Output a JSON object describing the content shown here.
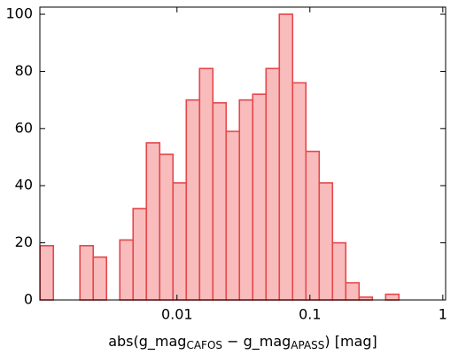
{
  "chart_data": {
    "type": "histogram",
    "xlabel_parts": [
      "abs(g_mag",
      "CAFOS",
      " − g_mag",
      "APASS",
      ") [mag]"
    ],
    "bins": [
      0.000933,
      0.001175,
      0.001479,
      0.001862,
      0.002344,
      0.002951,
      0.003715,
      0.004677,
      0.005888,
      0.007413,
      0.009333,
      0.01175,
      0.01479,
      0.01862,
      0.02344,
      0.02951,
      0.03715,
      0.04677,
      0.05888,
      0.07413,
      0.09333,
      0.1175,
      0.1479,
      0.1862,
      0.2344,
      0.2951,
      0.3715,
      0.4677
    ],
    "counts": [
      19,
      0,
      0,
      19,
      15,
      0,
      21,
      32,
      55,
      51,
      41,
      70,
      81,
      69,
      59,
      70,
      72,
      81,
      100,
      76,
      52,
      41,
      20,
      6,
      1,
      0,
      2
    ],
    "color": "#f9bcbc",
    "edgecolor": "#e5474b",
    "xscale": "log",
    "xlim": [
      0.00093,
      1.05
    ],
    "xticks": [
      0.01,
      0.1,
      1
    ],
    "ylim": [
      0,
      102.5
    ],
    "yticks": [
      0,
      20,
      40,
      60,
      80,
      100
    ]
  }
}
